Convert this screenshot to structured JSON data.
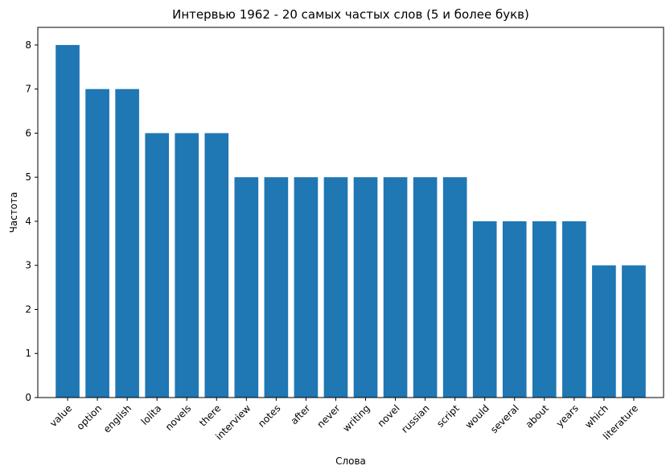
{
  "chart_data": {
    "type": "bar",
    "title": "Интервью 1962 - 20 самых частых слов (5 и более букв)",
    "xlabel": "Слова",
    "ylabel": "Частота",
    "categories": [
      "value",
      "option",
      "english",
      "lolita",
      "novels",
      "there",
      "interview",
      "notes",
      "after",
      "never",
      "writing",
      "novel",
      "russian",
      "script",
      "would",
      "several",
      "about",
      "years",
      "which",
      "literature"
    ],
    "values": [
      8,
      7,
      7,
      6,
      6,
      6,
      5,
      5,
      5,
      5,
      5,
      5,
      5,
      5,
      4,
      4,
      4,
      4,
      3,
      3
    ],
    "ylim": [
      0,
      8.4
    ],
    "yticks": [
      "0",
      "1",
      "2",
      "3",
      "4",
      "5",
      "6",
      "7",
      "8"
    ],
    "grid": false,
    "bar_color": "#1f77b4"
  }
}
